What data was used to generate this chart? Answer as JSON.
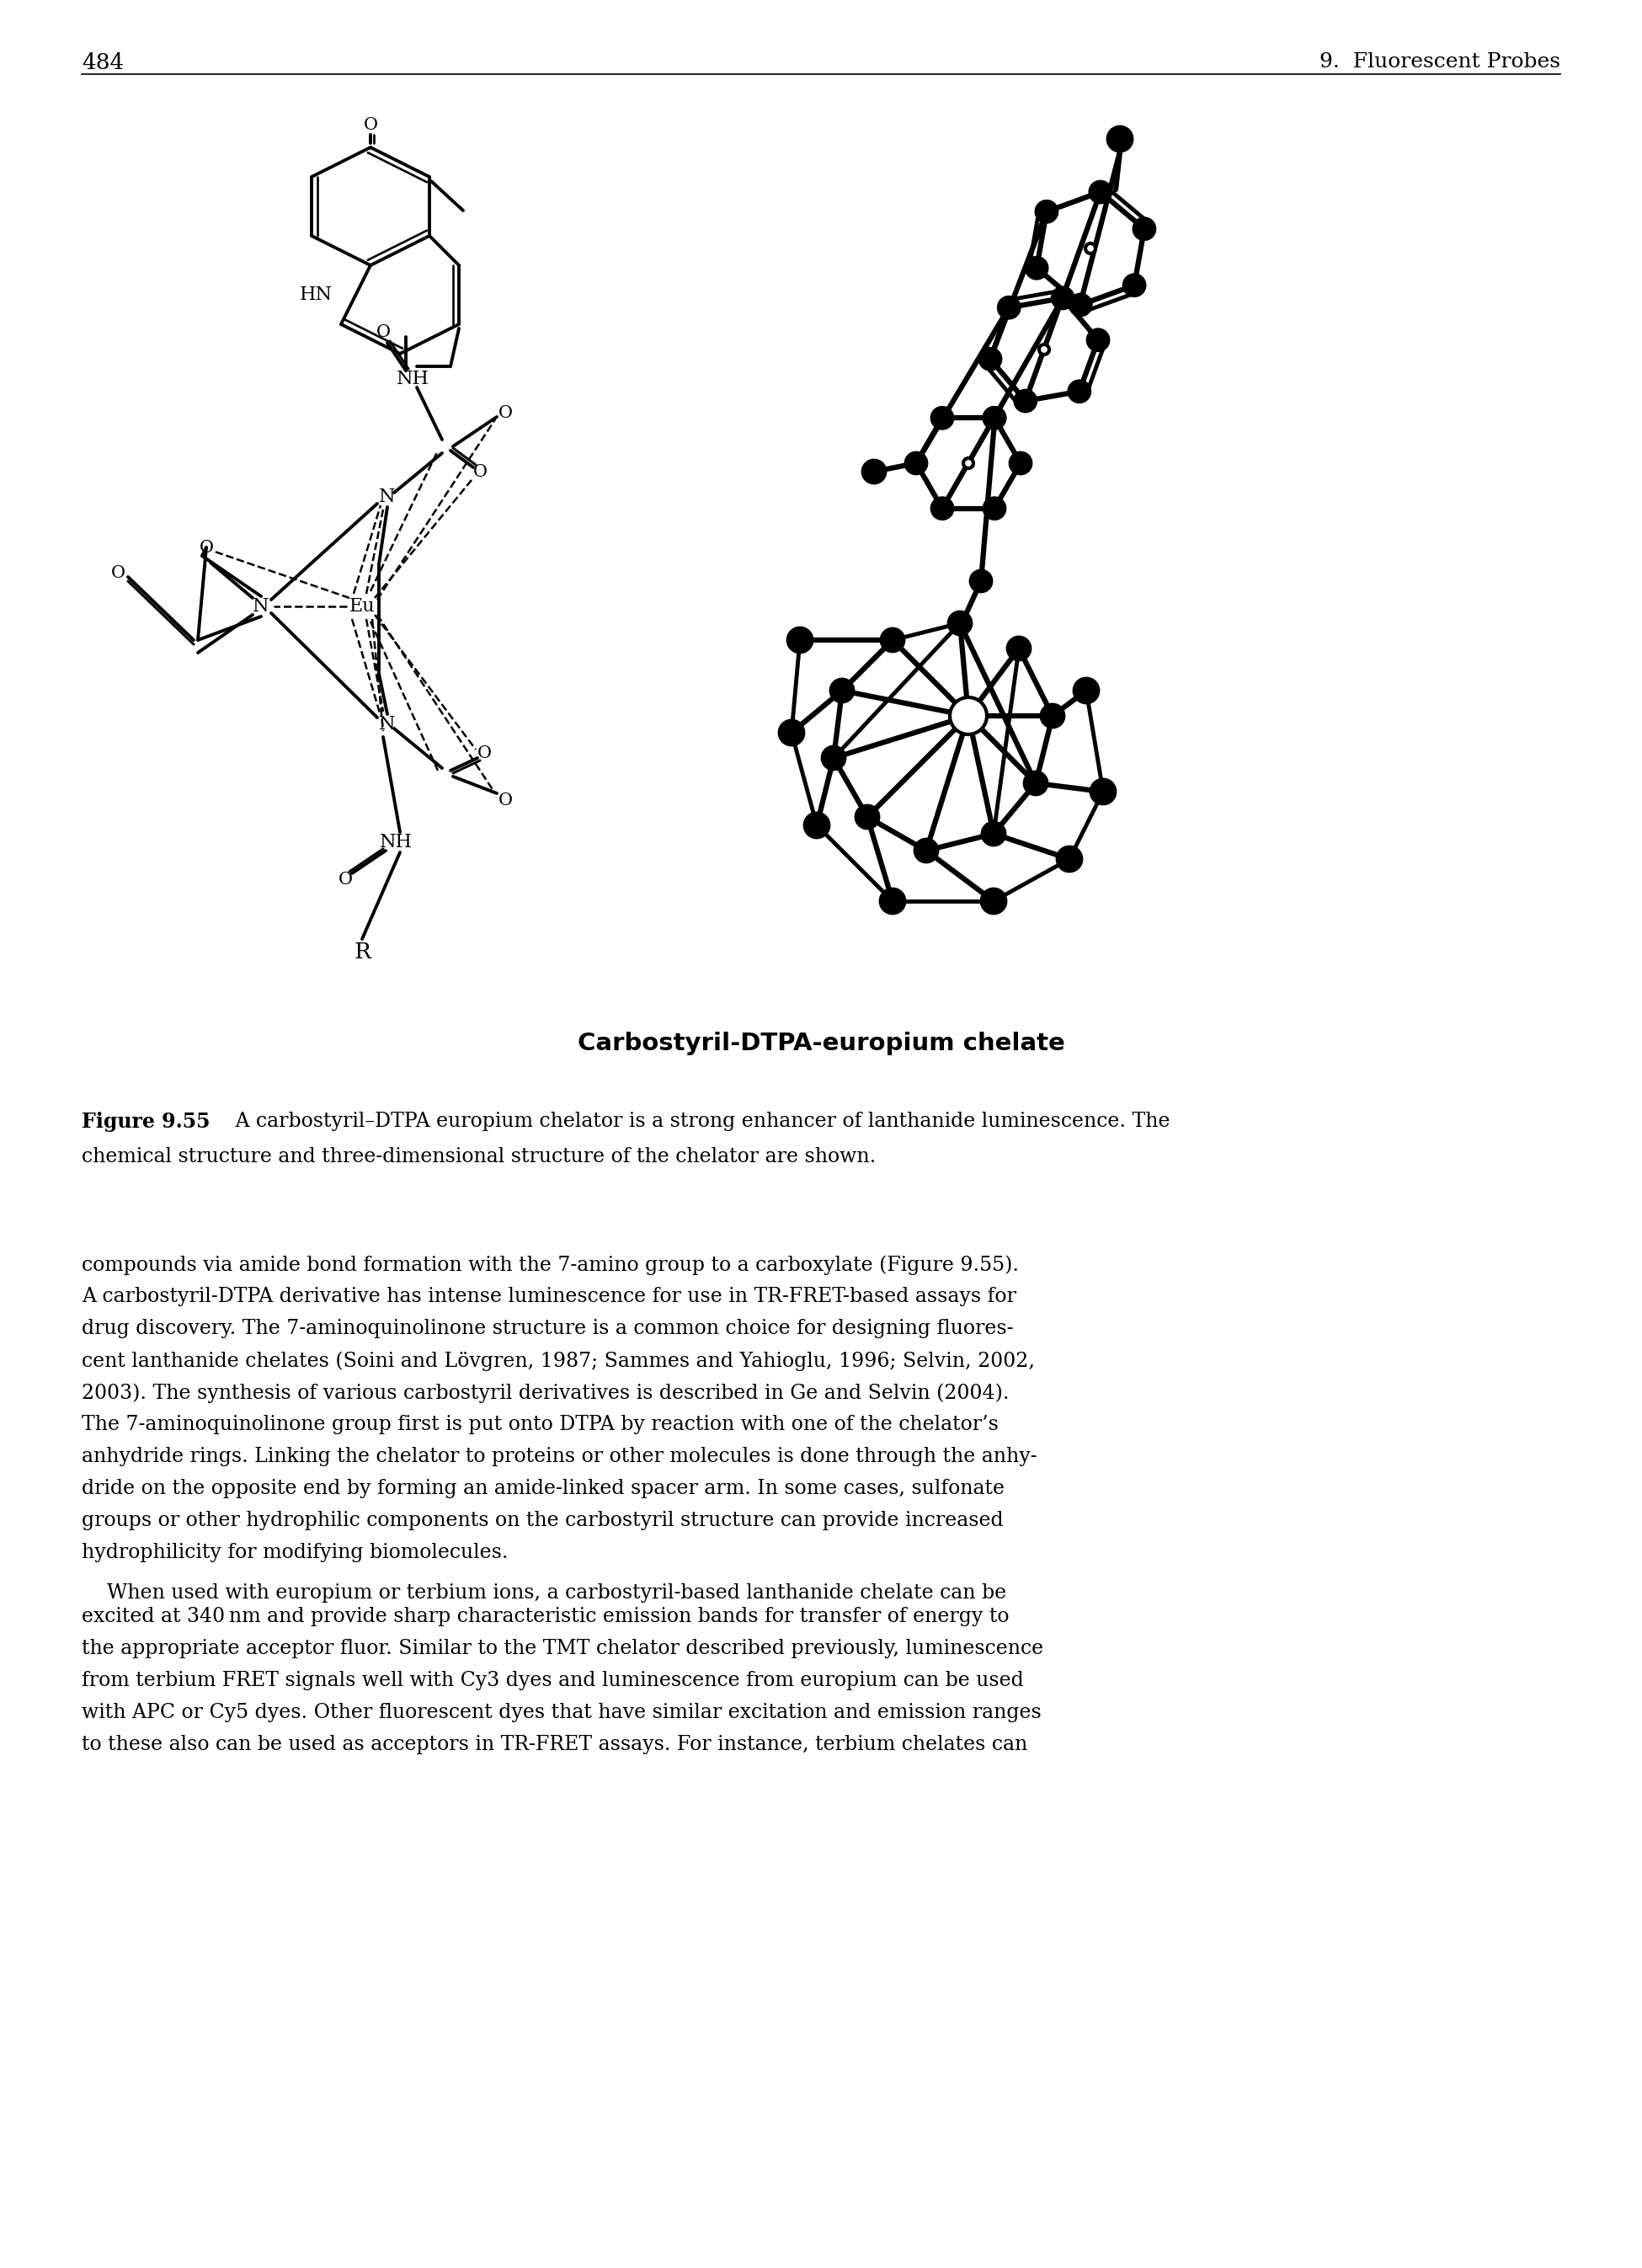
{
  "page_number": "484",
  "header_right": "9.  Fluorescent Probes",
  "figure_title": "Carbostyril-DTPA-europium chelate",
  "figure_caption_bold": "Figure 9.55",
  "figure_caption_text": "  A carbostyril–DTPA europium chelator is a strong enhancer of lanthanide luminescence. The",
  "figure_caption_line2": "chemical structure and three-dimensional structure of the chelator are shown.",
  "body_text": [
    "compounds via amide bond formation with the 7-amino group to a carboxylate (Figure 9.55).",
    "A carbostyril-DTPA derivative has intense luminescence for use in TR-FRET-based assays for",
    "drug discovery. The 7-aminoquinolinone structure is a common choice for designing fluores-",
    "cent lanthanide chelates (Soini and Lövgren, 1987; Sammes and Yahioglu, 1996; Selvin, 2002,",
    "2003). The synthesis of various carbostyril derivatives is described in Ge and Selvin (2004).",
    "The 7-aminoquinolinone group first is put onto DTPA by reaction with one of the chelator’s",
    "anhydride rings. Linking the chelator to proteins or other molecules is done through the anhy-",
    "dride on the opposite end by forming an amide-linked spacer arm. In some cases, sulfonate",
    "groups or other hydrophilic components on the carbostyril structure can provide increased",
    "hydrophilicity for modifying biomolecules.",
    "    When used with europium or terbium ions, a carbostyril-based lanthanide chelate can be",
    "excited at 340 nm and provide sharp characteristic emission bands for transfer of energy to",
    "the appropriate acceptor fluor. Similar to the TMT chelator described previously, luminescence",
    "from terbium FRET signals well with Cy3 dyes and luminescence from europium can be used",
    "with APC or Cy5 dyes. Other fluorescent dyes that have similar excitation and emission ranges",
    "to these also can be used as acceptors in TR-FRET assays. For instance, terbium chelates can"
  ],
  "bg": "#ffffff",
  "black": "#000000"
}
